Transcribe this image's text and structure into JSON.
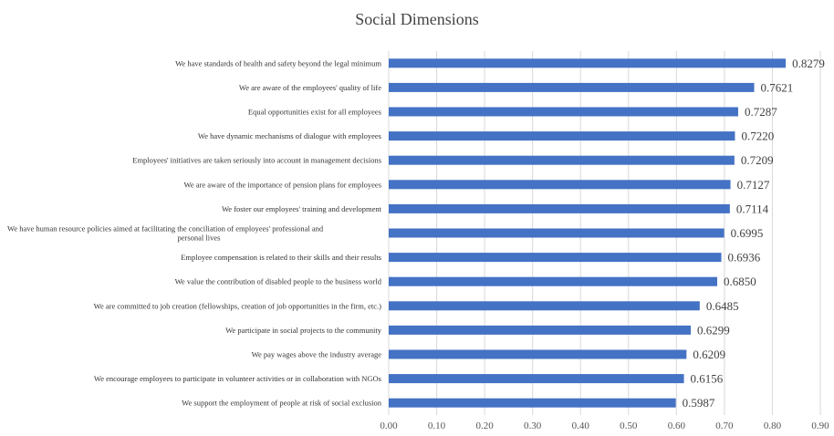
{
  "chart_data": {
    "type": "bar",
    "orientation": "horizontal",
    "title": "Social Dimensions",
    "xlabel": "",
    "ylabel": "",
    "xlim": [
      0,
      0.9
    ],
    "tick_step": 0.1,
    "tick_labels": [
      "0.00",
      "0.10",
      "0.20",
      "0.30",
      "0.40",
      "0.50",
      "0.60",
      "0.70",
      "0.80",
      "0.90"
    ],
    "grid": true,
    "legend": "none",
    "bar_color": "#4472C4",
    "categories": [
      [
        "We have standards of health and safety beyond the legal minimum"
      ],
      [
        "We are aware of the employees' quality of life"
      ],
      [
        "Equal opportunities exist for all employees"
      ],
      [
        "We have dynamic mechanisms of dialogue with employees"
      ],
      [
        "Employees' initiatives are taken seriously into account in management decisions"
      ],
      [
        "We are aware of the importance of pension plans for employees"
      ],
      [
        "We foster our employees' training and development"
      ],
      [
        "We have human resource policies aimed at facilitating the conciliation of employees' professional and",
        "personal lives"
      ],
      [
        "Employee compensation is related to their skills and their results"
      ],
      [
        "We value the contribution of disabled people to the business world"
      ],
      [
        "We are committed to job creation (fellowships, creation of job opportunities in the firm, etc.)"
      ],
      [
        "We participate in social projects to the community"
      ],
      [
        "We pay wages above the industry average"
      ],
      [
        "We encourage employees to participate in volunteer activities or in collaboration with NGOs"
      ],
      [
        "We support the employment of people at risk of social exclusion"
      ]
    ],
    "values": [
      0.8279,
      0.7621,
      0.7287,
      0.722,
      0.7209,
      0.7127,
      0.7114,
      0.6995,
      0.6936,
      0.685,
      0.6485,
      0.6299,
      0.6209,
      0.6156,
      0.5987
    ],
    "value_labels": [
      "0.8279",
      "0.7621",
      "0.7287",
      "0.7220",
      "0.7209",
      "0.7127",
      "0.7114",
      "0.6995",
      "0.6936",
      "0.6850",
      "0.6485",
      "0.6299",
      "0.6209",
      "0.6156",
      "0.5987"
    ]
  }
}
